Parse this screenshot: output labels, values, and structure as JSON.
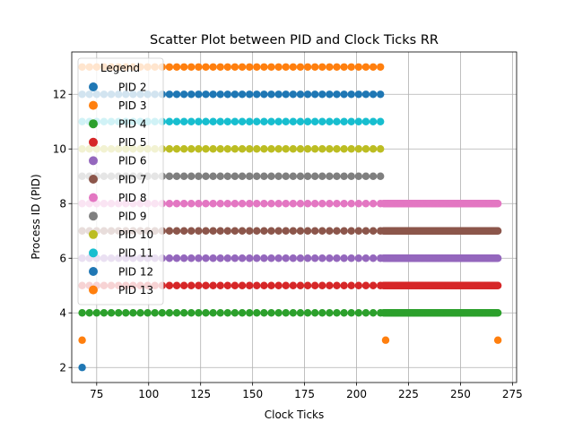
{
  "chart_data": {
    "type": "scatter",
    "title": "Scatter Plot between PID and Clock Ticks RR",
    "xlabel": "Clock Ticks",
    "ylabel": "Process ID (PID)",
    "xlim": [
      63,
      277
    ],
    "ylim": [
      1.45,
      13.55
    ],
    "xticks": [
      75,
      100,
      125,
      150,
      175,
      200,
      225,
      250,
      275
    ],
    "yticks": [
      2,
      4,
      6,
      8,
      10,
      12
    ],
    "grid": true,
    "legend": {
      "title": "Legend",
      "placement": "upper-left"
    },
    "series": [
      {
        "name": "PID 2",
        "color": "#1f77b4",
        "y": 2,
        "points": [
          68
        ]
      },
      {
        "name": "PID 3",
        "color": "#ff7f0e",
        "y": 3,
        "points": [
          68,
          214,
          268
        ]
      },
      {
        "name": "PID 4",
        "color": "#2ca02c",
        "y": 4,
        "ranges": [
          [
            68,
            212,
            3.5
          ],
          [
            213,
            268,
            0.5
          ]
        ]
      },
      {
        "name": "PID 5",
        "color": "#d62728",
        "y": 5,
        "ranges": [
          [
            68,
            212,
            3.5
          ],
          [
            213,
            268,
            0.5
          ]
        ]
      },
      {
        "name": "PID 6",
        "color": "#9467bd",
        "y": 6,
        "ranges": [
          [
            68,
            212,
            3.5
          ],
          [
            213,
            268,
            0.5
          ]
        ]
      },
      {
        "name": "PID 7",
        "color": "#8c564b",
        "y": 7,
        "ranges": [
          [
            68,
            212,
            3.5
          ],
          [
            213,
            268,
            0.5
          ]
        ]
      },
      {
        "name": "PID 8",
        "color": "#e377c2",
        "y": 8,
        "ranges": [
          [
            68,
            212,
            3.5
          ],
          [
            213,
            268,
            0.5
          ]
        ]
      },
      {
        "name": "PID 9",
        "color": "#7f7f7f",
        "y": 9,
        "ranges": [
          [
            68,
            214,
            3.5
          ]
        ]
      },
      {
        "name": "PID 10",
        "color": "#bcbd22",
        "y": 10,
        "ranges": [
          [
            68,
            214,
            3.5
          ]
        ]
      },
      {
        "name": "PID 11",
        "color": "#17becf",
        "y": 11,
        "ranges": [
          [
            68,
            214,
            3.5
          ]
        ]
      },
      {
        "name": "PID 12",
        "color": "#1f77b4",
        "y": 12,
        "ranges": [
          [
            68,
            214,
            3.5
          ]
        ]
      },
      {
        "name": "PID 13",
        "color": "#ff7f0e",
        "y": 13,
        "ranges": [
          [
            68,
            214,
            3.5
          ]
        ]
      }
    ]
  }
}
